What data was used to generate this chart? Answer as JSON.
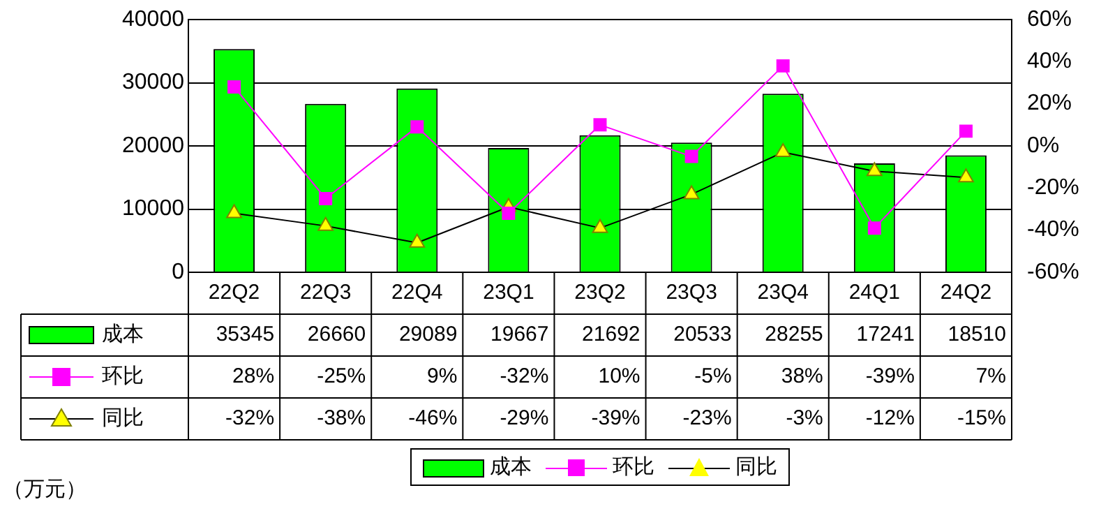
{
  "chart_data": {
    "type": "bar",
    "categories": [
      "22Q2",
      "22Q3",
      "22Q4",
      "23Q1",
      "23Q2",
      "23Q3",
      "23Q4",
      "24Q1",
      "24Q2"
    ],
    "series": [
      {
        "name": "成本",
        "color": "#00ff00",
        "values": [
          35345,
          26660,
          29089,
          19667,
          21692,
          20533,
          28255,
          17241,
          18510
        ],
        "value_labels": [
          "35345",
          "26660",
          "29089",
          "19667",
          "21692",
          "20533",
          "28255",
          "17241",
          "18510"
        ]
      },
      {
        "name": "环比",
        "type": "line",
        "axis": "y2",
        "marker": "square",
        "color": "#ff00ff",
        "values": [
          28,
          -25,
          9,
          -32,
          10,
          -5,
          38,
          -39,
          7
        ],
        "value_labels": [
          "28%",
          "-25%",
          "9%",
          "-32%",
          "10%",
          "-5%",
          "38%",
          "-39%",
          "7%"
        ]
      },
      {
        "name": "同比",
        "type": "line",
        "axis": "y2",
        "marker": "triangle",
        "color": "#ffff00",
        "values": [
          -32,
          -38,
          -46,
          -29,
          -39,
          -23,
          -3,
          -12,
          -15
        ],
        "value_labels": [
          "-32%",
          "-38%",
          "-46%",
          "-29%",
          "-39%",
          "-23%",
          "-3%",
          "-12%",
          "-15%"
        ]
      }
    ],
    "ylim": [
      0,
      40000
    ],
    "yticks": [
      0,
      10000,
      20000,
      30000,
      40000
    ],
    "y2lim": [
      -60,
      60
    ],
    "y2ticks": [
      {
        "value": -60,
        "label": "-60%"
      },
      {
        "value": -40,
        "label": "-40%"
      },
      {
        "value": -20,
        "label": "-20%"
      },
      {
        "value": 0,
        "label": "0%"
      },
      {
        "value": 20,
        "label": "20%"
      },
      {
        "value": 40,
        "label": "40%"
      },
      {
        "value": 60,
        "label": "60%"
      }
    ],
    "grid": "y",
    "legend": "bottom",
    "annotations": [
      "（万元）"
    ]
  }
}
